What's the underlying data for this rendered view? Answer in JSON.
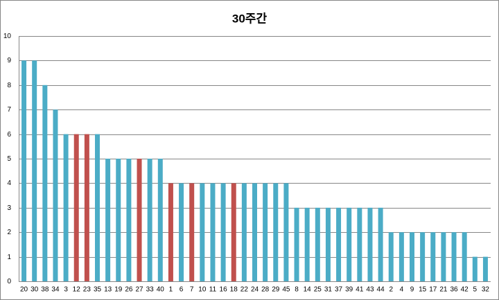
{
  "chart_data": {
    "type": "bar",
    "title": "30주간",
    "categories": [
      "20",
      "30",
      "38",
      "34",
      "3",
      "12",
      "23",
      "35",
      "13",
      "19",
      "26",
      "27",
      "33",
      "40",
      "1",
      "6",
      "7",
      "10",
      "11",
      "16",
      "18",
      "22",
      "24",
      "28",
      "29",
      "45",
      "8",
      "14",
      "25",
      "31",
      "37",
      "39",
      "41",
      "43",
      "44",
      "2",
      "4",
      "9",
      "15",
      "17",
      "21",
      "36",
      "42",
      "5",
      "32"
    ],
    "values": [
      9,
      9,
      8,
      7,
      6,
      6,
      6,
      6,
      5,
      5,
      5,
      5,
      5,
      5,
      4,
      4,
      4,
      4,
      4,
      4,
      4,
      4,
      4,
      4,
      4,
      4,
      3,
      3,
      3,
      3,
      3,
      3,
      3,
      3,
      3,
      2,
      2,
      2,
      2,
      2,
      2,
      2,
      2,
      1,
      1
    ],
    "colors": [
      "#4bacc6",
      "#4bacc6",
      "#4bacc6",
      "#4bacc6",
      "#4bacc6",
      "#c0504d",
      "#c0504d",
      "#4bacc6",
      "#4bacc6",
      "#4bacc6",
      "#4bacc6",
      "#c0504d",
      "#4bacc6",
      "#4bacc6",
      "#c0504d",
      "#4bacc6",
      "#c0504d",
      "#4bacc6",
      "#4bacc6",
      "#4bacc6",
      "#c0504d",
      "#4bacc6",
      "#4bacc6",
      "#4bacc6",
      "#4bacc6",
      "#4bacc6",
      "#4bacc6",
      "#4bacc6",
      "#4bacc6",
      "#4bacc6",
      "#4bacc6",
      "#4bacc6",
      "#4bacc6",
      "#4bacc6",
      "#4bacc6",
      "#4bacc6",
      "#4bacc6",
      "#4bacc6",
      "#4bacc6",
      "#4bacc6",
      "#4bacc6",
      "#4bacc6",
      "#4bacc6",
      "#4bacc6",
      "#4bacc6"
    ],
    "ylim": [
      0,
      10
    ],
    "yticks": [
      0,
      1,
      2,
      3,
      4,
      5,
      6,
      7,
      8,
      9,
      10
    ],
    "grid": true
  }
}
